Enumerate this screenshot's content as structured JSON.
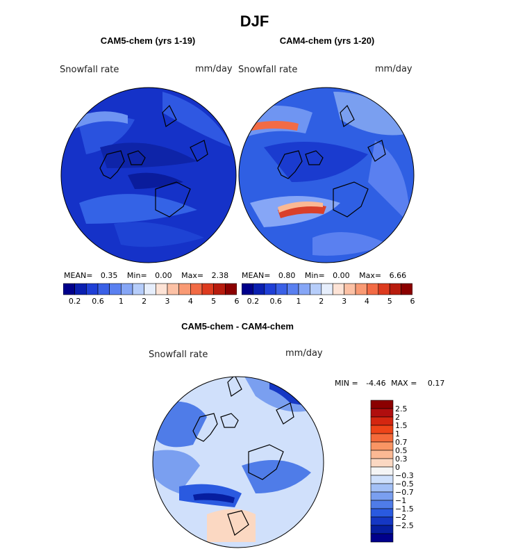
{
  "title": "DJF",
  "panels": [
    {
      "subtitle": "CAM5-chem (yrs 1-19)",
      "variable": "Snowfall rate",
      "units": "mm/day",
      "mean_label": "MEAN=",
      "mean": "0.35",
      "min_label": "Min=",
      "min": "0.00",
      "max_label": "Max=",
      "max": "2.38"
    },
    {
      "subtitle": "CAM4-chem (yrs 1-20)",
      "variable": "Snowfall rate",
      "units": "mm/day",
      "mean_label": "MEAN=",
      "mean": "0.80",
      "min_label": "Min=",
      "min": "0.00",
      "max_label": "Max=",
      "max": "6.66"
    }
  ],
  "diff_panel": {
    "subtitle": "CAM5-chem - CAM4-chem",
    "variable": "Snowfall rate",
    "units": "mm/day",
    "min_label": "MIN =",
    "min": "-4.46",
    "max_label": "MAX =",
    "max": "0.17"
  },
  "colors": {
    "abs_scale": [
      "#00008b",
      "#0a1fb0",
      "#1f3fd6",
      "#3a60e6",
      "#5a80f0",
      "#86a6f6",
      "#b6cdfa",
      "#e6eefc",
      "#fde3d6",
      "#fcc1a5",
      "#f99a74",
      "#f26b45",
      "#dd3b1f",
      "#b81c0e",
      "#8b0000"
    ],
    "diff_scale": [
      "#8b0000",
      "#b00e0e",
      "#d42610",
      "#ee4418",
      "#f56a3a",
      "#f99564",
      "#fbb994",
      "#fbd8c2",
      "#f5f5f5",
      "#cfe0fb",
      "#a3c0f6",
      "#7a9ff0",
      "#4f7ce8",
      "#2a5ae0",
      "#1537c4",
      "#061ea0",
      "#00008b"
    ]
  },
  "chart_data": [
    {
      "type": "heatmap",
      "title": "CAM5-chem (yrs 1-19)",
      "projection": "north polar stereographic",
      "variable": "Snowfall rate",
      "units": "mm/day",
      "stats": {
        "mean": 0.35,
        "min": 0.0,
        "max": 2.38
      },
      "colorbar_levels": [
        0.1,
        0.2,
        0.4,
        0.6,
        0.8,
        1,
        1.5,
        2,
        2.5,
        3,
        3.5,
        4,
        4.5,
        5,
        5.5,
        6
      ],
      "colorbar_tick_labels": [
        "0.2",
        "0.6",
        "1",
        "2",
        "3",
        "4",
        "5",
        "6"
      ]
    },
    {
      "type": "heatmap",
      "title": "CAM4-chem (yrs 1-20)",
      "projection": "north polar stereographic",
      "variable": "Snowfall rate",
      "units": "mm/day",
      "stats": {
        "mean": 0.8,
        "min": 0.0,
        "max": 6.66
      },
      "colorbar_levels": [
        0.1,
        0.2,
        0.4,
        0.6,
        0.8,
        1,
        1.5,
        2,
        2.5,
        3,
        3.5,
        4,
        4.5,
        5,
        5.5,
        6
      ],
      "colorbar_tick_labels": [
        "0.2",
        "0.6",
        "1",
        "2",
        "3",
        "4",
        "5",
        "6"
      ]
    },
    {
      "type": "heatmap",
      "title": "CAM5-chem - CAM4-chem",
      "projection": "north polar stereographic",
      "variable": "Snowfall rate",
      "units": "mm/day",
      "stats": {
        "min": -4.46,
        "max": 0.17
      },
      "colorbar_tick_labels": [
        "2.5",
        "2",
        "1.5",
        "1",
        "0.7",
        "0.5",
        "0.3",
        "0",
        "−0.3",
        "−0.5",
        "−0.7",
        "−1",
        "−1.5",
        "−2",
        "−2.5"
      ]
    }
  ]
}
